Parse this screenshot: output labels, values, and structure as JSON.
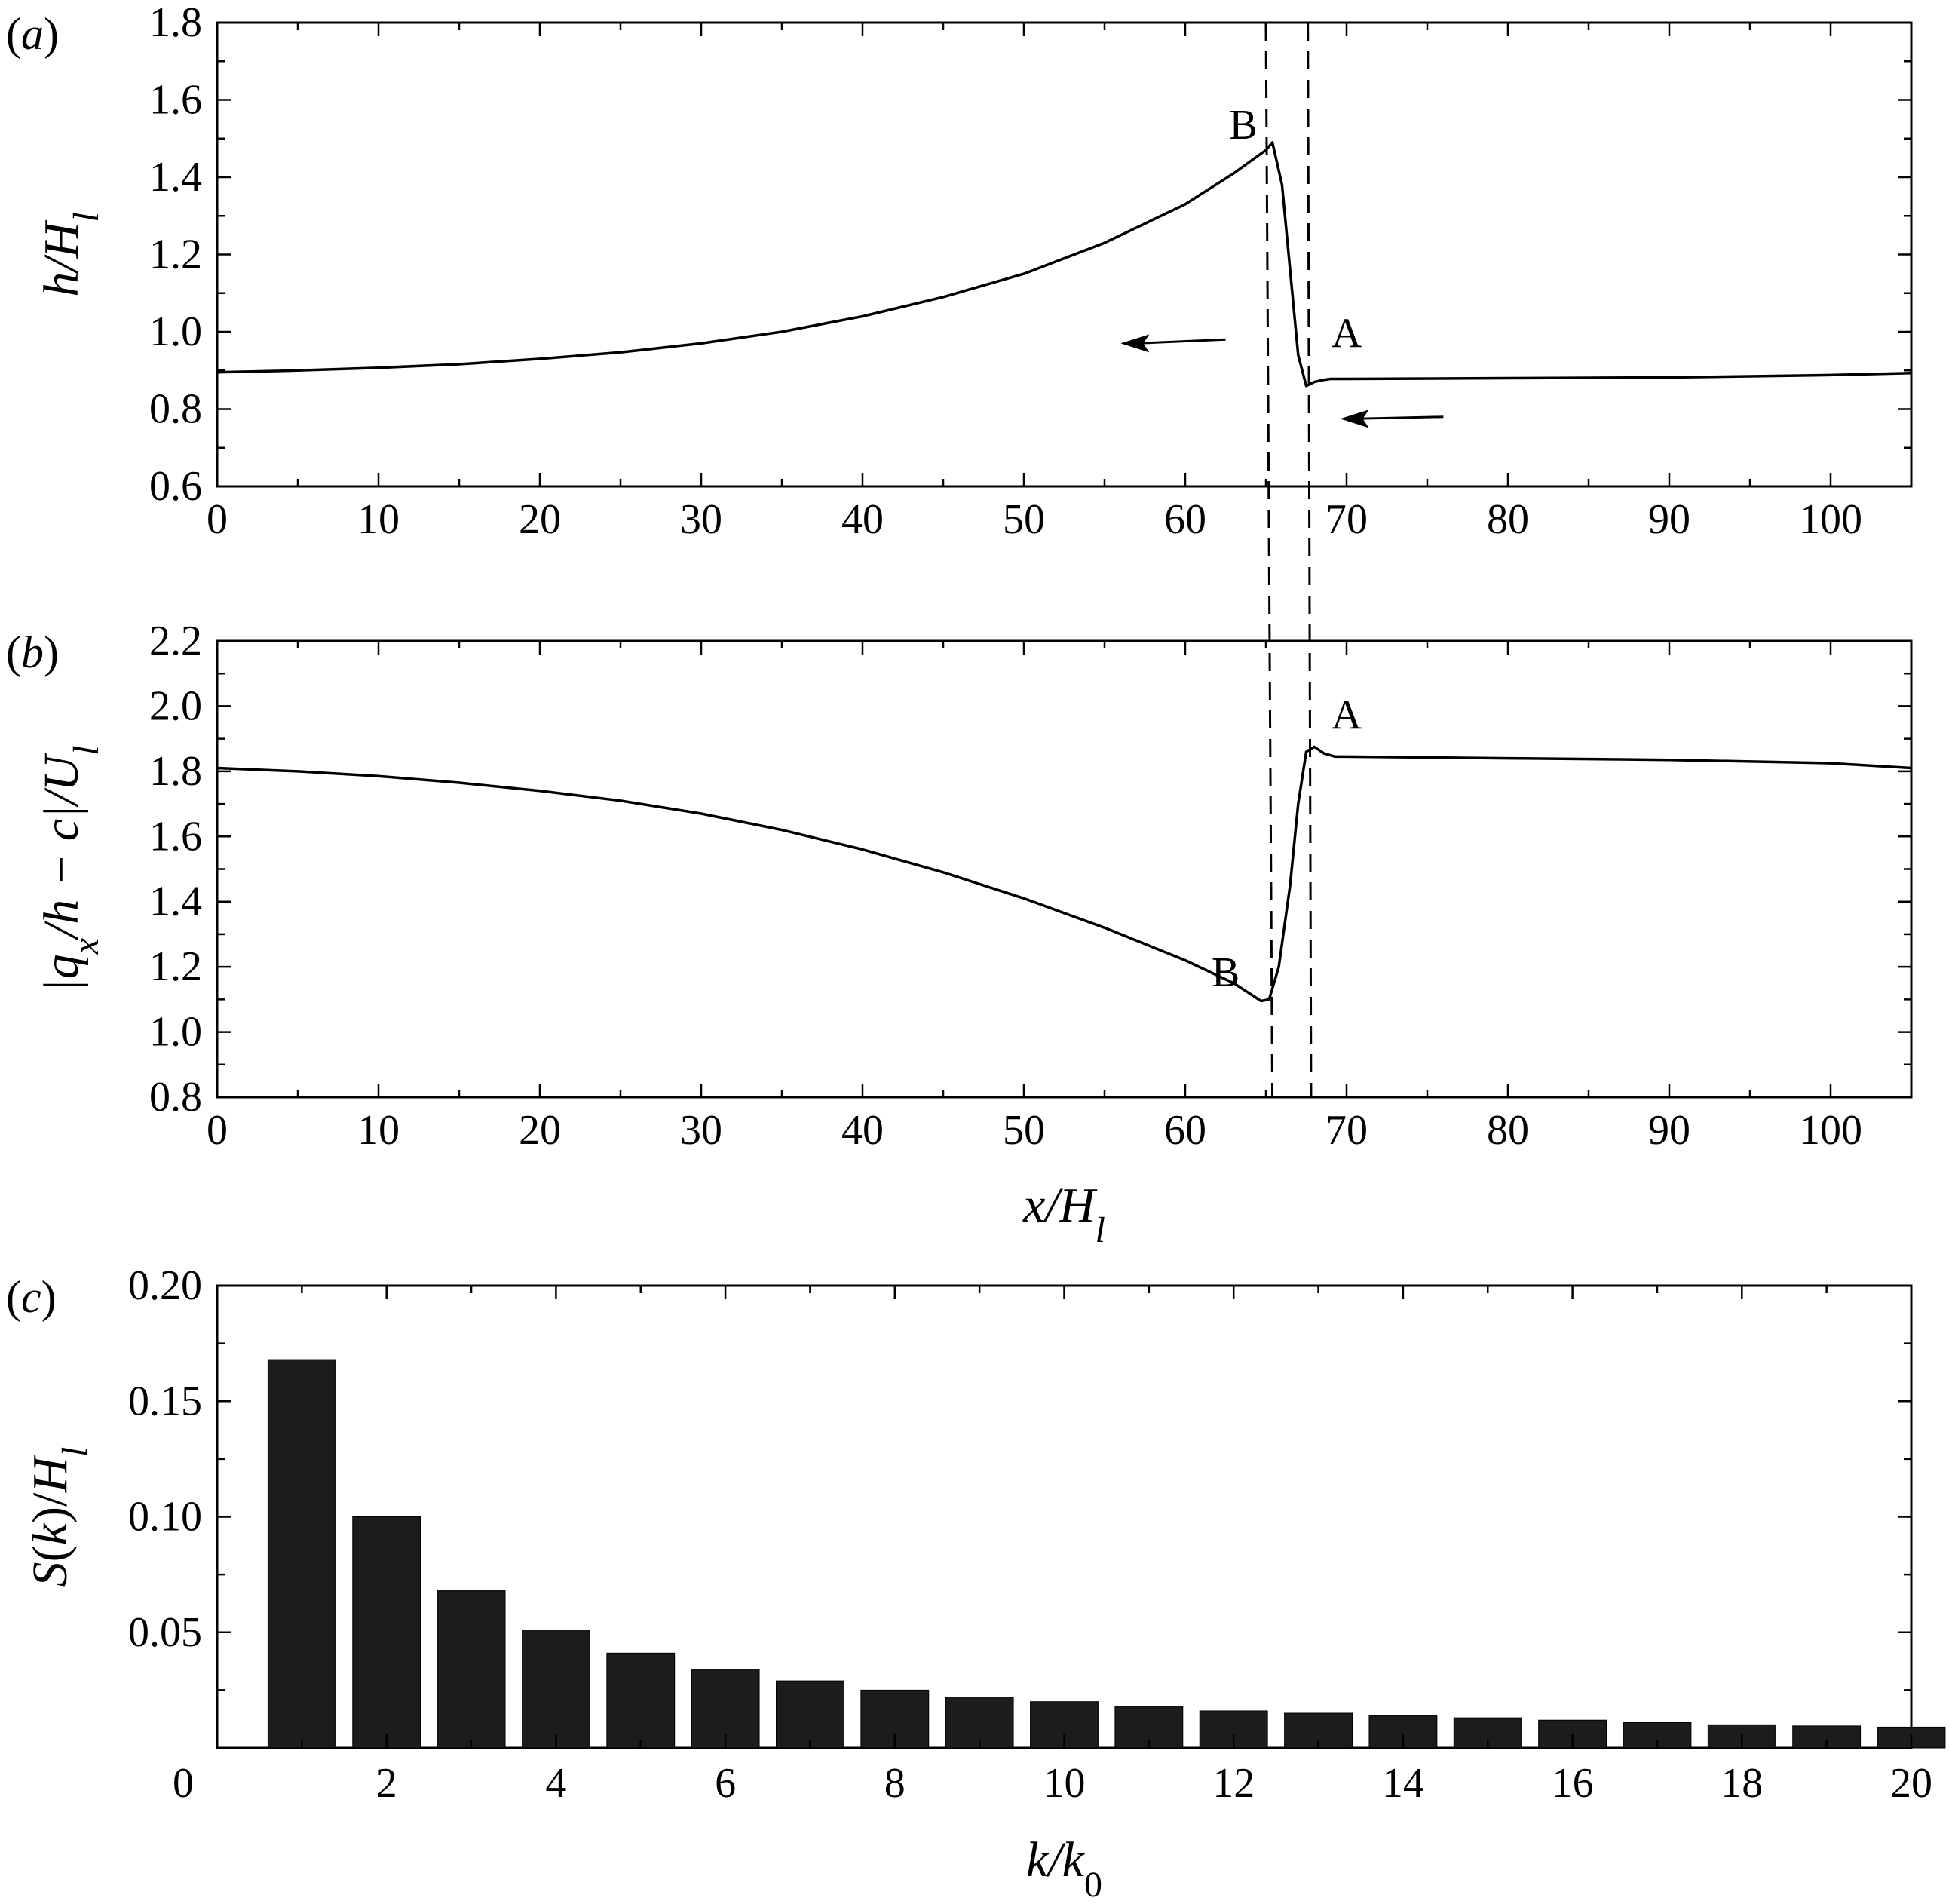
{
  "chart_data": [
    {
      "panel": "(a)",
      "type": "line",
      "ylabel": "h/H_l",
      "xlim": [
        0,
        105
      ],
      "ylim": [
        0.6,
        1.8
      ],
      "xticks": [
        0,
        10,
        20,
        30,
        40,
        50,
        60,
        70,
        80,
        90,
        100
      ],
      "yticks": [
        "0.6",
        "0.8",
        "1.0",
        "1.2",
        "1.4",
        "1.6",
        "1.8"
      ],
      "series": [
        {
          "x": [
            0,
            5,
            10,
            15,
            20,
            25,
            30,
            35,
            40,
            45,
            50,
            55,
            60,
            63,
            65,
            65.4,
            66,
            67,
            67.5,
            68,
            68.5,
            69,
            70,
            80,
            90,
            100,
            105
          ],
          "y": [
            0.895,
            0.9,
            0.907,
            0.916,
            0.93,
            0.947,
            0.97,
            1.0,
            1.04,
            1.09,
            1.15,
            1.23,
            1.33,
            1.41,
            1.47,
            1.49,
            1.38,
            0.94,
            0.86,
            0.87,
            0.875,
            0.878,
            0.878,
            0.88,
            0.882,
            0.888,
            0.893
          ]
        }
      ],
      "annotations": [
        {
          "text": "B",
          "x": 63.6,
          "y": 1.5
        },
        {
          "text": "A",
          "x": 70.0,
          "y": 0.96
        }
      ],
      "dashed_x": [
        65.0,
        67.6
      ],
      "arrows": [
        {
          "x1": 62.5,
          "y1": 0.98,
          "x2": 56,
          "y2": 0.97
        },
        {
          "x1": 76,
          "y1": 0.78,
          "x2": 69.6,
          "y2": 0.775
        }
      ]
    },
    {
      "panel": "(b)",
      "type": "line",
      "ylabel": "|q_x/h − c|/U_l",
      "xlabel": "x/H_l",
      "xlim": [
        0,
        105
      ],
      "ylim": [
        0.8,
        2.2
      ],
      "xticks": [
        0,
        10,
        20,
        30,
        40,
        50,
        60,
        70,
        80,
        90,
        100
      ],
      "yticks": [
        "0.8",
        "1.0",
        "1.2",
        "1.4",
        "1.6",
        "1.8",
        "2.0",
        "2.2"
      ],
      "series": [
        {
          "x": [
            0,
            5,
            10,
            15,
            20,
            25,
            30,
            35,
            40,
            45,
            50,
            55,
            60,
            63,
            64.7,
            65.2,
            65.8,
            66.5,
            67.0,
            67.5,
            68.0,
            68.6,
            69.3,
            70,
            80,
            90,
            100,
            105
          ],
          "y": [
            1.81,
            1.8,
            1.785,
            1.765,
            1.74,
            1.71,
            1.67,
            1.62,
            1.56,
            1.49,
            1.41,
            1.32,
            1.22,
            1.15,
            1.095,
            1.1,
            1.2,
            1.45,
            1.7,
            1.86,
            1.875,
            1.855,
            1.845,
            1.845,
            1.84,
            1.835,
            1.825,
            1.81
          ]
        }
      ],
      "annotations": [
        {
          "text": "A",
          "x": 70.0,
          "y": 1.93
        },
        {
          "text": "B",
          "x": 62.5,
          "y": 1.14
        }
      ],
      "dashed_x": [
        65.4,
        67.8
      ]
    },
    {
      "panel": "(c)",
      "type": "bar",
      "ylabel": "S(k)/H_l",
      "xlabel": "k/k_0",
      "xlim": [
        0,
        20
      ],
      "ylim": [
        0,
        0.2
      ],
      "xticks": [
        "0",
        "2",
        "4",
        "6",
        "8",
        "10",
        "12",
        "14",
        "16",
        "18",
        "20"
      ],
      "yticks": [
        "0.05",
        "0.10",
        "0.15",
        "0.20"
      ],
      "categories": [
        1,
        2,
        3,
        4,
        5,
        6,
        7,
        8,
        9,
        10,
        11,
        12,
        13,
        14,
        15,
        16,
        17,
        18,
        19,
        20
      ],
      "values": [
        0.168,
        0.1,
        0.068,
        0.051,
        0.041,
        0.034,
        0.029,
        0.025,
        0.022,
        0.02,
        0.018,
        0.016,
        0.015,
        0.014,
        0.013,
        0.012,
        0.011,
        0.01,
        0.0095,
        0.009
      ]
    }
  ]
}
